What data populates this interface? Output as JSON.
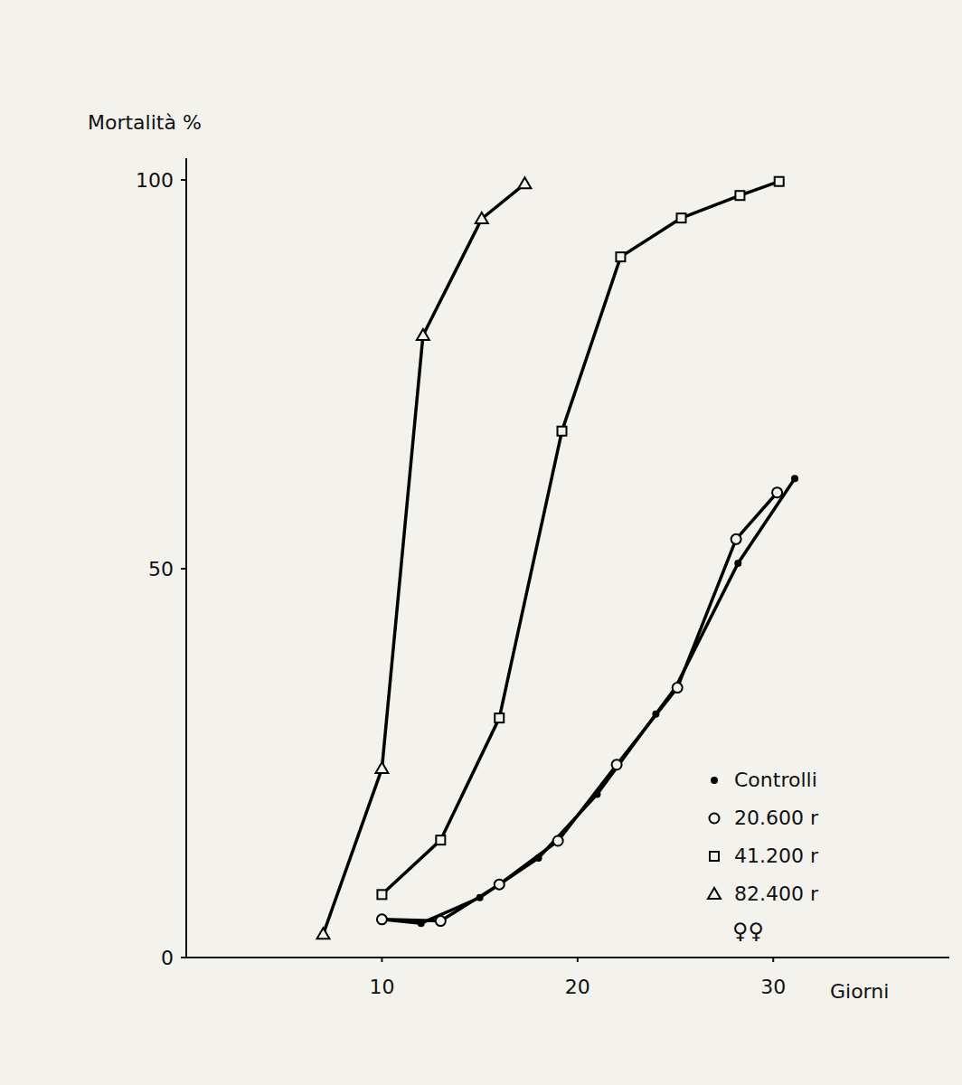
{
  "chart_data": {
    "type": "line",
    "y_label": "Mortalità %",
    "x_label": "Giorni",
    "xlim": [
      0,
      39
    ],
    "xticks": [
      10,
      20,
      30
    ],
    "ylim": [
      0,
      100
    ],
    "yticks": [
      0,
      50,
      100
    ],
    "grid": false,
    "legend": "lower right",
    "annotations": [
      "♀♀"
    ],
    "series": [
      {
        "name": "Controlli",
        "color": "#000000",
        "marker": "dot",
        "line_style": "solid",
        "x": [
          10,
          12,
          15,
          18,
          21,
          24,
          25,
          28.2,
          31.1
        ],
        "values": [
          4.9,
          4.4,
          7.7,
          12.8,
          21,
          31.3,
          34.7,
          50.7,
          61.6
        ]
      },
      {
        "name": "20.600 r",
        "color": "#000000",
        "marker": "circle",
        "line_style": "solid",
        "x": [
          10,
          13,
          16,
          19,
          22,
          25.1,
          28.1,
          30.2
        ],
        "values": [
          4.9,
          4.7,
          9.4,
          15,
          24.8,
          34.7,
          53.8,
          59.8
        ]
      },
      {
        "name": "41.200 r",
        "color": "#000000",
        "marker": "square",
        "line_style": "solid",
        "x": [
          10,
          13,
          16,
          19.2,
          22.2,
          25.3,
          28.3,
          30.3
        ],
        "values": [
          8.1,
          15.1,
          30.8,
          67.7,
          90.1,
          95.1,
          98,
          99.8
        ]
      },
      {
        "name": "82.400 r",
        "color": "#000000",
        "marker": "triangle",
        "line_style": "solid",
        "x": [
          7,
          10,
          12.1,
          15.1,
          17.3
        ],
        "values": [
          3,
          24.3,
          80,
          95,
          99.5
        ]
      }
    ]
  }
}
